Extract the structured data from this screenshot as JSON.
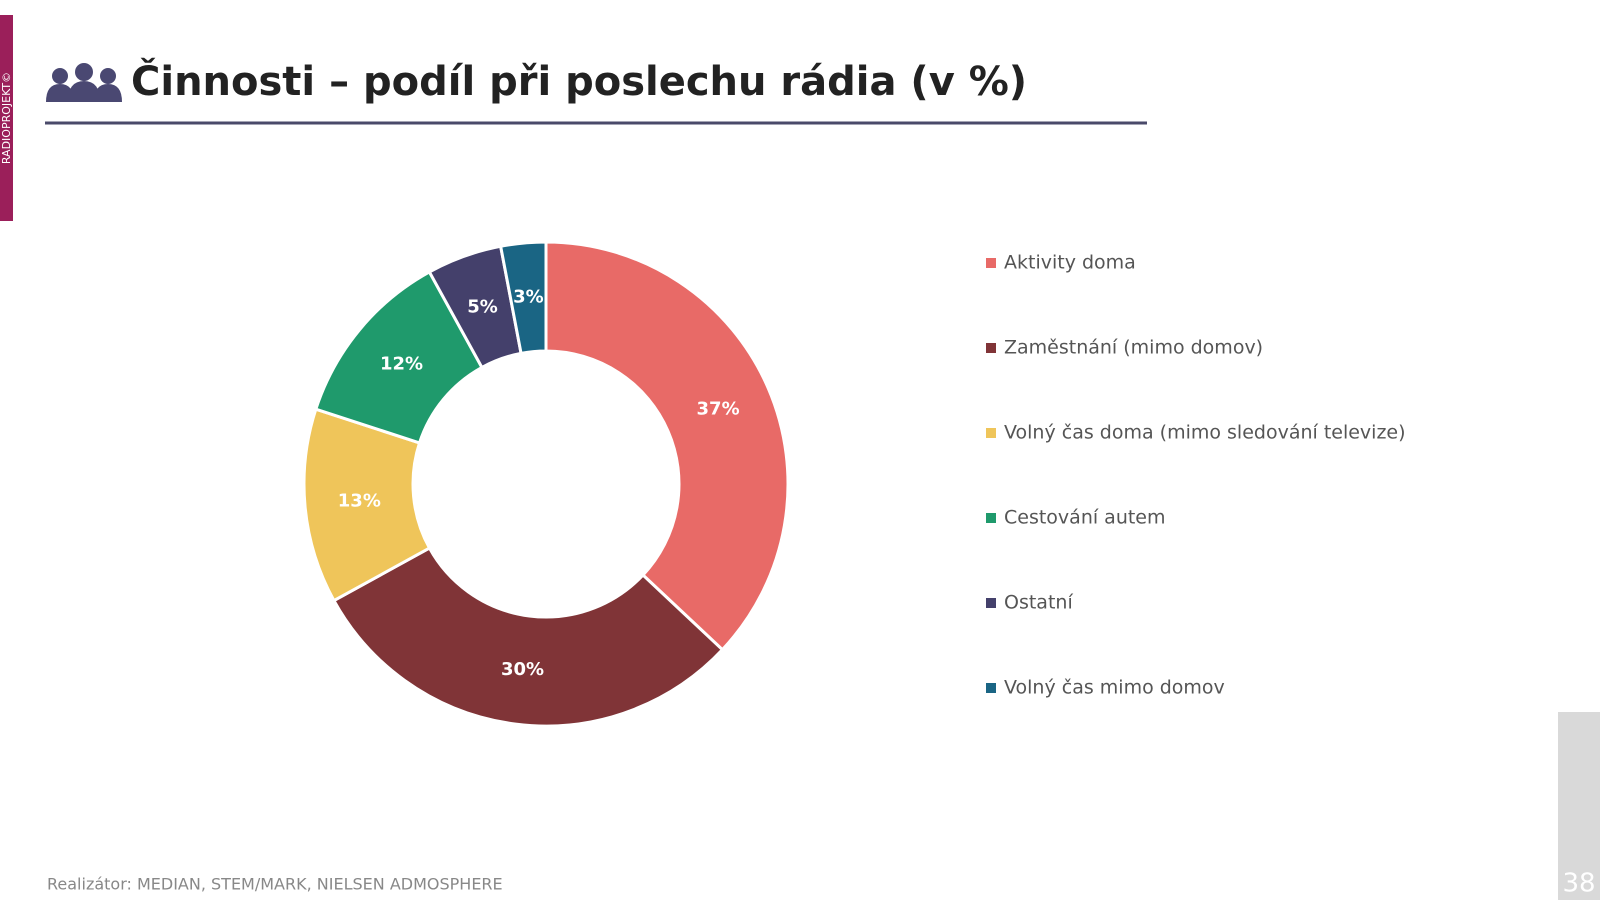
{
  "side_label": "RADIOPROJEKT©",
  "footer": "Realizátor: MEDIAN, STEM/MARK, NIELSEN ADMOSPHERE",
  "page_number": 38,
  "chart_data": {
    "type": "donut",
    "title": "Činnosti – podíl při poslechu rádia (v %)",
    "categories": [
      "Aktivity doma",
      "Zaměstnání (mimo domov)",
      "Volný čas doma (mimo sledování televize)",
      "Cestování autem",
      "Ostatní",
      "Volný čas mimo domov"
    ],
    "values": [
      37,
      30,
      13,
      12,
      5,
      3
    ],
    "value_labels": [
      "37%",
      "30%",
      "13%",
      "12%",
      "5%",
      "3%"
    ],
    "colors": [
      "#e86a67",
      "#803437",
      "#efc55a",
      "#1f9a6c",
      "#44406b",
      "#1a6584"
    ],
    "legend": "right"
  }
}
